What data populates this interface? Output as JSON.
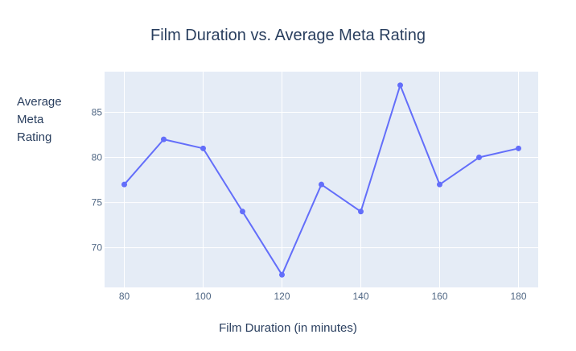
{
  "chart_data": {
    "type": "line",
    "title": "Film Duration vs. Average Meta Rating",
    "xlabel": "Film Duration (in minutes)",
    "ylabel_lines": [
      "Average",
      "Meta",
      "Rating"
    ],
    "x": [
      80,
      90,
      100,
      110,
      120,
      130,
      140,
      150,
      160,
      170,
      180
    ],
    "y": [
      77,
      82,
      81,
      74,
      67,
      77,
      74,
      88,
      77,
      80,
      81
    ],
    "xlim": [
      75,
      185
    ],
    "ylim": [
      65.6,
      89.5
    ],
    "xticks": [
      80,
      100,
      120,
      140,
      160,
      180
    ],
    "yticks": [
      70,
      75,
      80,
      85
    ],
    "grid": true,
    "colors": {
      "line": "#636efa",
      "plot_bg": "#e5ecf6",
      "grid": "#ffffff",
      "tick_text": "#506784"
    }
  }
}
